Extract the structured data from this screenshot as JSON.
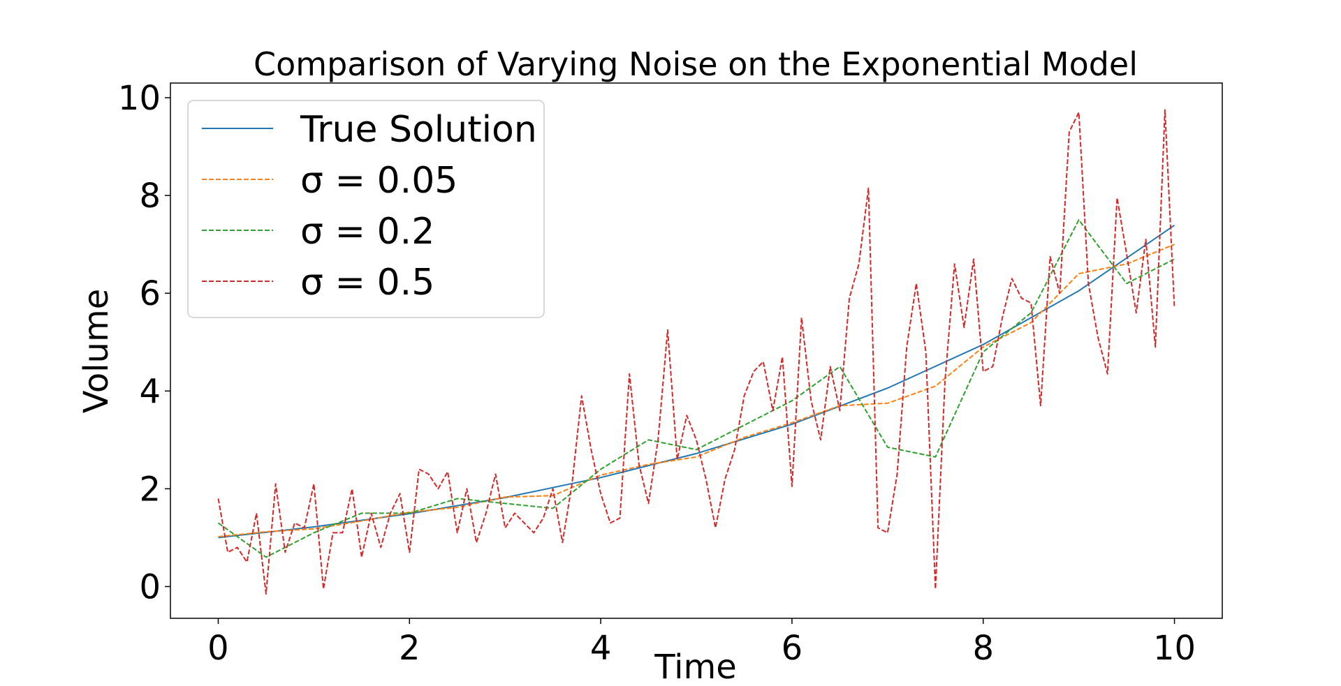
{
  "chart_data": {
    "type": "line",
    "title": "Comparison of Varying Noise on the Exponential Model",
    "xlabel": "Time",
    "ylabel": "Volume",
    "xlim": [
      -0.5,
      10.5
    ],
    "ylim": [
      -0.65,
      10.3
    ],
    "xticks": [
      0,
      2,
      4,
      6,
      8,
      10
    ],
    "yticks": [
      0,
      2,
      4,
      6,
      8,
      10
    ],
    "grid": false,
    "legend_position": "upper-left",
    "series": [
      {
        "name": "True Solution",
        "color": "#1f77b4",
        "style": "solid",
        "x": [
          0,
          1,
          2,
          3,
          4,
          5,
          6,
          7,
          8,
          9,
          10
        ],
        "y": [
          1.0,
          1.22,
          1.49,
          1.82,
          2.23,
          2.72,
          3.32,
          4.06,
          4.95,
          6.05,
          7.39
        ]
      },
      {
        "name": "σ = 0.05",
        "color": "#ff7f0e",
        "style": "dashed",
        "x": [
          0,
          0.5,
          1.0,
          1.5,
          2.0,
          2.5,
          3.0,
          3.5,
          4.0,
          4.5,
          5.0,
          5.5,
          6.0,
          6.5,
          7.0,
          7.5,
          8.0,
          8.5,
          9.0,
          9.5,
          10.0
        ],
        "y": [
          1.02,
          1.12,
          1.18,
          1.34,
          1.52,
          1.62,
          1.83,
          1.86,
          2.28,
          2.5,
          2.65,
          3.05,
          3.35,
          3.7,
          3.75,
          4.1,
          4.9,
          5.4,
          6.4,
          6.6,
          7.0
        ]
      },
      {
        "name": "σ = 0.2",
        "color": "#2ca02c",
        "style": "dashed",
        "x": [
          0,
          0.5,
          1.0,
          1.5,
          2.0,
          2.5,
          3.0,
          3.5,
          4.0,
          4.5,
          5.0,
          5.5,
          6.0,
          6.5,
          7.0,
          7.5,
          8.0,
          8.5,
          9.0,
          9.5,
          10.0
        ],
        "y": [
          1.3,
          0.6,
          1.1,
          1.5,
          1.5,
          1.8,
          1.7,
          1.6,
          2.4,
          3.0,
          2.8,
          3.3,
          3.8,
          4.5,
          2.85,
          2.65,
          4.8,
          5.6,
          7.5,
          6.2,
          6.7
        ]
      },
      {
        "name": "σ = 0.5",
        "color": "#d62728",
        "style": "dashed",
        "x": [
          0,
          0.1,
          0.2,
          0.3,
          0.4,
          0.5,
          0.6,
          0.7,
          0.8,
          0.9,
          1.0,
          1.1,
          1.2,
          1.3,
          1.4,
          1.5,
          1.6,
          1.7,
          1.8,
          1.9,
          2.0,
          2.1,
          2.2,
          2.3,
          2.4,
          2.5,
          2.6,
          2.7,
          2.8,
          2.9,
          3.0,
          3.1,
          3.2,
          3.3,
          3.4,
          3.5,
          3.6,
          3.7,
          3.8,
          3.9,
          4.0,
          4.1,
          4.2,
          4.3,
          4.4,
          4.5,
          4.6,
          4.7,
          4.8,
          4.9,
          5.0,
          5.1,
          5.2,
          5.3,
          5.4,
          5.5,
          5.6,
          5.7,
          5.8,
          5.9,
          6.0,
          6.1,
          6.2,
          6.3,
          6.4,
          6.5,
          6.6,
          6.7,
          6.8,
          6.9,
          7.0,
          7.1,
          7.2,
          7.3,
          7.4,
          7.5,
          7.6,
          7.7,
          7.8,
          7.9,
          8.0,
          8.1,
          8.2,
          8.3,
          8.4,
          8.5,
          8.6,
          8.7,
          8.8,
          8.9,
          9.0,
          9.1,
          9.2,
          9.3,
          9.4,
          9.5,
          9.6,
          9.7,
          9.8,
          9.9,
          10.0
        ],
        "y": [
          1.8,
          0.7,
          0.8,
          0.5,
          1.5,
          -0.15,
          2.1,
          0.7,
          1.3,
          1.2,
          2.1,
          -0.05,
          1.1,
          1.1,
          2.0,
          0.6,
          1.5,
          0.8,
          1.5,
          1.9,
          0.7,
          2.4,
          2.3,
          2.0,
          2.35,
          1.1,
          2.0,
          0.9,
          1.5,
          2.3,
          1.2,
          1.5,
          1.3,
          1.1,
          1.4,
          2.0,
          0.9,
          2.1,
          3.9,
          2.8,
          1.9,
          1.3,
          1.4,
          4.35,
          2.5,
          1.7,
          3.0,
          5.25,
          2.6,
          3.5,
          3.0,
          2.2,
          1.2,
          2.2,
          2.8,
          3.9,
          4.4,
          4.6,
          3.6,
          4.7,
          2.05,
          5.5,
          3.8,
          3.0,
          4.5,
          3.6,
          5.9,
          6.6,
          8.15,
          1.2,
          1.1,
          2.3,
          4.9,
          6.2,
          4.8,
          -0.05,
          4.2,
          6.6,
          5.3,
          6.7,
          4.4,
          4.5,
          5.5,
          6.3,
          5.9,
          5.8,
          3.7,
          6.75,
          6.0,
          9.3,
          9.7,
          6.2,
          5.1,
          4.35,
          7.95,
          6.8,
          5.6,
          7.1,
          4.9,
          9.75,
          5.7
        ]
      }
    ]
  }
}
